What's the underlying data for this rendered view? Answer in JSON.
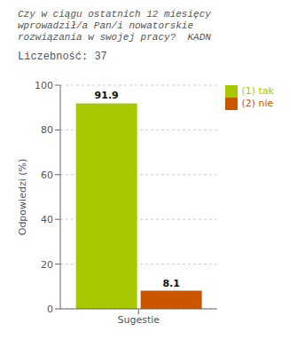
{
  "chart_data": {
    "type": "bar",
    "title": [
      "Czy w ciągu ostatnich 12 miesięcy",
      "wprowadził/a Pan/i nowatorskie",
      "rozwiązania w swojej pracy?  KADN"
    ],
    "subtitle": "Liczebność: 37",
    "ylabel": "Odpowiedzi (%)",
    "categories": [
      "Sugestie"
    ],
    "series": [
      {
        "name": "(1) tak",
        "color": "#a8c800",
        "values": [
          91.9
        ]
      },
      {
        "name": "(2) nie",
        "color": "#cc5500",
        "values": [
          8.1
        ]
      }
    ],
    "ylim": [
      0,
      100
    ],
    "yticks": [
      0,
      20,
      40,
      60,
      80,
      100
    ],
    "grid": true,
    "legend": "right",
    "data_labels": true
  }
}
